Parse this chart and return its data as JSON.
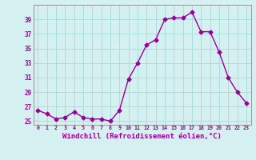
{
  "x": [
    0,
    1,
    2,
    3,
    4,
    5,
    6,
    7,
    8,
    9,
    10,
    11,
    12,
    13,
    14,
    15,
    16,
    17,
    18,
    19,
    20,
    21,
    22,
    23
  ],
  "y": [
    26.5,
    26.0,
    25.3,
    25.5,
    26.3,
    25.5,
    25.3,
    25.3,
    25.0,
    26.5,
    30.8,
    33.0,
    35.5,
    36.2,
    39.0,
    39.2,
    39.2,
    40.0,
    37.3,
    37.3,
    34.5,
    31.0,
    29.0,
    27.5
  ],
  "line_color": "#990099",
  "marker": "D",
  "marker_size": 2.5,
  "linewidth": 1.0,
  "xlabel": "Windchill (Refroidissement éolien,°C)",
  "xlabel_fontsize": 6.5,
  "background_color": "#d4f0f0",
  "grid_color": "#aadddd",
  "tick_color": "#990099",
  "tick_label_color": "#990099",
  "yticks": [
    25,
    27,
    29,
    31,
    33,
    35,
    37,
    39
  ],
  "xlim": [
    -0.5,
    23.5
  ],
  "ylim": [
    24.5,
    41
  ],
  "xtick_labels": [
    "0",
    "1",
    "2",
    "3",
    "4",
    "5",
    "6",
    "7",
    "8",
    "9",
    "10",
    "11",
    "12",
    "13",
    "14",
    "15",
    "16",
    "17",
    "18",
    "19",
    "20",
    "21",
    "22",
    "23"
  ]
}
